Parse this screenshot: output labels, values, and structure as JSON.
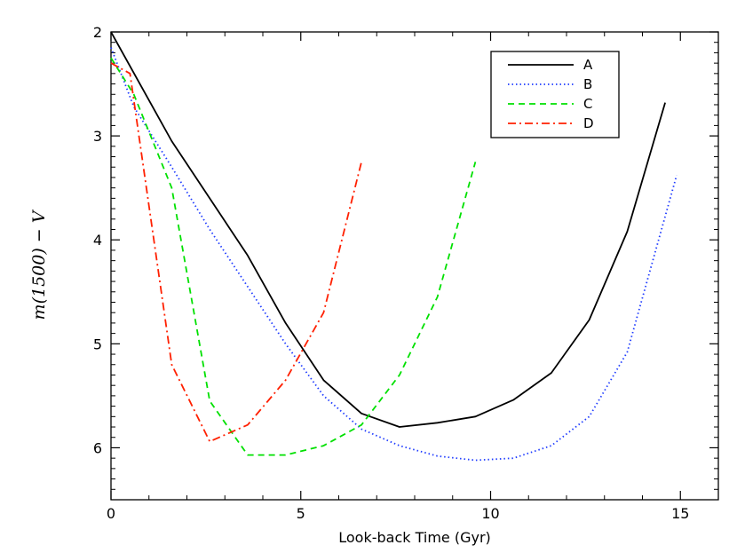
{
  "chart_data": {
    "type": "line",
    "title": "",
    "xlabel": "Look-back Time (Gyr)",
    "ylabel": "m(1500) − V",
    "xlim": [
      0,
      16
    ],
    "ylim": [
      6.5,
      2
    ],
    "y_inverted": true,
    "x_ticks": [
      0,
      5,
      10,
      15
    ],
    "y_ticks": [
      2,
      3,
      4,
      5,
      6
    ],
    "grid": false,
    "legend": "top-right",
    "series": [
      {
        "name": "A",
        "color": "#000000",
        "dash": "solid",
        "x": [
          0.0,
          1.6,
          3.6,
          4.6,
          5.6,
          6.6,
          7.6,
          8.6,
          9.6,
          10.6,
          11.6,
          12.6,
          13.6,
          14.6
        ],
        "y": [
          2.0,
          3.05,
          4.15,
          4.8,
          5.35,
          5.67,
          5.8,
          5.76,
          5.7,
          5.54,
          5.28,
          4.77,
          3.92,
          2.68
        ]
      },
      {
        "name": "B",
        "color": "#1f3cff",
        "dash": "dotted",
        "x": [
          0.0,
          0.6,
          1.6,
          2.6,
          3.6,
          4.6,
          5.6,
          6.6,
          7.6,
          8.6,
          9.6,
          10.6,
          11.6,
          12.6,
          13.6,
          14.9
        ],
        "y": [
          2.15,
          2.72,
          3.3,
          3.9,
          4.45,
          5.0,
          5.5,
          5.82,
          5.98,
          6.08,
          6.12,
          6.1,
          5.98,
          5.7,
          5.08,
          3.38
        ]
      },
      {
        "name": "C",
        "color": "#00e000",
        "dash": "dashed",
        "x": [
          0.0,
          0.6,
          1.6,
          2.6,
          3.6,
          4.6,
          5.6,
          6.6,
          7.6,
          8.6,
          9.6
        ],
        "y": [
          2.25,
          2.6,
          3.5,
          5.55,
          6.07,
          6.07,
          5.98,
          5.78,
          5.3,
          4.55,
          3.25
        ]
      },
      {
        "name": "D",
        "color": "#ff2000",
        "dash": "dashdot",
        "x": [
          0.0,
          0.5,
          1.6,
          2.6,
          3.6,
          4.6,
          5.6,
          6.6
        ],
        "y": [
          2.3,
          2.4,
          5.2,
          5.94,
          5.78,
          5.35,
          4.7,
          3.25
        ]
      }
    ]
  }
}
